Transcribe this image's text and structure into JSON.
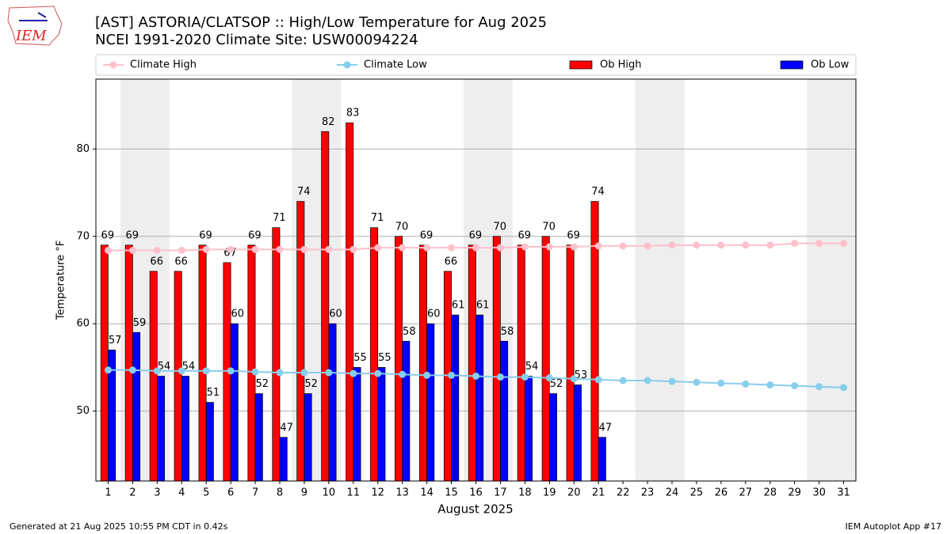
{
  "chart_data": {
    "type": "bar",
    "logo": "IEM",
    "title": "[AST] ASTORIA/CLATSOP :: High/Low Temperature for Aug 2025",
    "subtitle": "NCEI 1991-2020 Climate Site: USW00094224",
    "xlabel": "August 2025",
    "ylabel": "Temperature °F",
    "footer_left": "Generated at 21 Aug 2025 10:55 PM CDT in 0.42s",
    "footer_right": "IEM Autoplot App #17",
    "x": [
      1,
      2,
      3,
      4,
      5,
      6,
      7,
      8,
      9,
      10,
      11,
      12,
      13,
      14,
      15,
      16,
      17,
      18,
      19,
      20,
      21,
      22,
      23,
      24,
      25,
      26,
      27,
      28,
      29,
      30,
      31
    ],
    "xlim": [
      0.5,
      31.5
    ],
    "xticks": [
      1,
      2,
      3,
      4,
      5,
      6,
      7,
      8,
      9,
      10,
      11,
      12,
      13,
      14,
      15,
      16,
      17,
      18,
      19,
      20,
      21,
      22,
      23,
      24,
      25,
      26,
      27,
      28,
      29,
      30,
      31
    ],
    "ylim": [
      42,
      88
    ],
    "yticks": [
      50,
      60,
      70,
      80
    ],
    "grid": true,
    "series": [
      {
        "name": "Climate High",
        "type": "line",
        "color": "#ffc0cb",
        "values": [
          68.4,
          68.4,
          68.4,
          68.4,
          68.5,
          68.5,
          68.5,
          68.5,
          68.5,
          68.5,
          68.5,
          68.7,
          68.7,
          68.7,
          68.7,
          68.7,
          68.7,
          68.8,
          68.8,
          68.8,
          68.9,
          68.9,
          68.9,
          69.0,
          69.0,
          69.0,
          69.0,
          69.0,
          69.2,
          69.2,
          69.2
        ]
      },
      {
        "name": "Climate Low",
        "type": "line",
        "color": "#87ceeb",
        "values": [
          54.7,
          54.7,
          54.6,
          54.6,
          54.6,
          54.6,
          54.5,
          54.4,
          54.4,
          54.4,
          54.3,
          54.3,
          54.2,
          54.1,
          54.1,
          54.0,
          53.9,
          53.9,
          53.8,
          53.7,
          53.6,
          53.5,
          53.5,
          53.4,
          53.3,
          53.2,
          53.1,
          53.0,
          52.9,
          52.8,
          52.7
        ]
      },
      {
        "name": "Ob High",
        "type": "bar",
        "color": "#ff0000",
        "values": [
          69,
          69,
          66,
          66,
          69,
          67,
          69,
          71,
          74,
          82,
          83,
          71,
          70,
          69,
          66,
          69,
          70,
          69,
          70,
          69,
          74,
          null,
          null,
          null,
          null,
          null,
          null,
          null,
          null,
          null,
          null
        ]
      },
      {
        "name": "Ob Low",
        "type": "bar",
        "color": "#0000ff",
        "values": [
          57,
          59,
          54,
          54,
          51,
          60,
          52,
          47,
          52,
          60,
          55,
          55,
          58,
          60,
          61,
          61,
          58,
          54,
          52,
          53,
          47,
          null,
          null,
          null,
          null,
          null,
          null,
          null,
          null,
          null,
          null
        ]
      }
    ]
  }
}
